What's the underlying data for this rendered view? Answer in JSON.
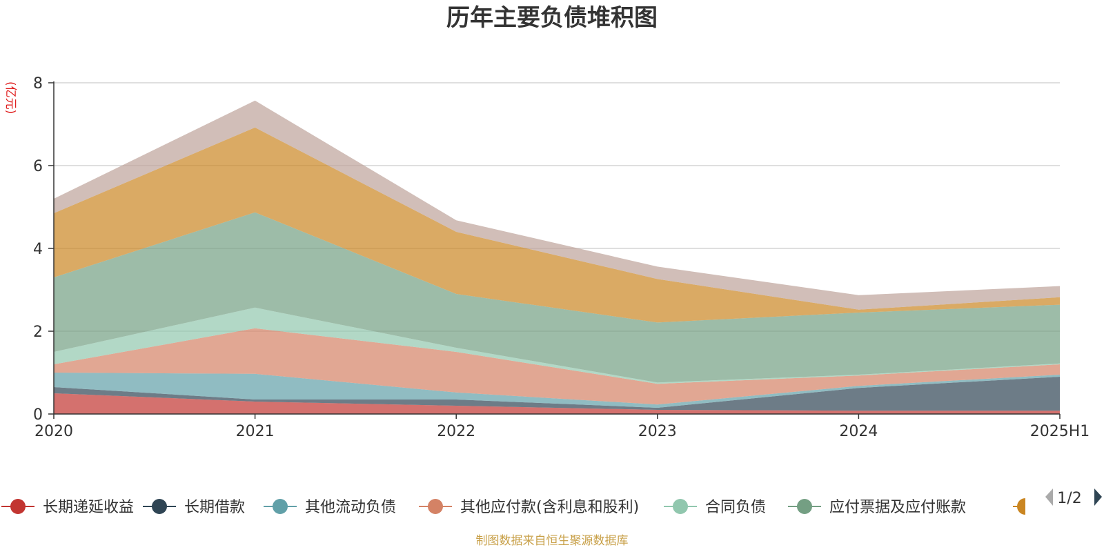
{
  "chart_data": {
    "type": "area",
    "stacked": true,
    "title": "历年主要负债堆积图",
    "unit_label": "(亿元)",
    "x": [
      "2020",
      "2021",
      "2022",
      "2023",
      "2024",
      "2025H1"
    ],
    "ylim": [
      0,
      8
    ],
    "yticks": [
      "0",
      "2",
      "4",
      "6",
      "8"
    ],
    "grid": true,
    "legend_position": "bottom",
    "series": [
      {
        "name": "长期递延收益",
        "color": "#c23531",
        "values": [
          0.5,
          0.3,
          0.2,
          0.1,
          0.08,
          0.08
        ]
      },
      {
        "name": "长期借款",
        "color": "#2f4554",
        "values": [
          0.15,
          0.05,
          0.15,
          0.05,
          0.55,
          0.82
        ]
      },
      {
        "name": "其他流动负债",
        "color": "#61a0a8",
        "values": [
          0.35,
          0.62,
          0.17,
          0.08,
          0.05,
          0.05
        ]
      },
      {
        "name": "其他应付款(含利息和股利)",
        "color": "#d48265",
        "values": [
          0.2,
          1.1,
          0.98,
          0.5,
          0.25,
          0.25
        ]
      },
      {
        "name": "合同负债",
        "color": "#91c7ae",
        "values": [
          0.3,
          0.5,
          0.1,
          0.03,
          0.02,
          0.02
        ]
      },
      {
        "name": "应付票据及应付账款",
        "color": "#749f83",
        "values": [
          1.8,
          2.3,
          1.3,
          1.45,
          1.5,
          1.42
        ]
      },
      {
        "name": "",
        "color": "#ca8622",
        "values": [
          1.55,
          2.05,
          1.5,
          1.05,
          0.07,
          0.18
        ]
      },
      {
        "name": "",
        "color": "#bda29a",
        "values": [
          0.35,
          0.65,
          0.28,
          0.3,
          0.35,
          0.27
        ]
      }
    ]
  },
  "legend": {
    "visible_count": 6,
    "partial_icon_color": "#ca8622",
    "page_indicator": "1/2",
    "prev_color": "#aaaaaa",
    "next_color": "#2f4554"
  },
  "footer": "制图数据来自恒生聚源数据库"
}
